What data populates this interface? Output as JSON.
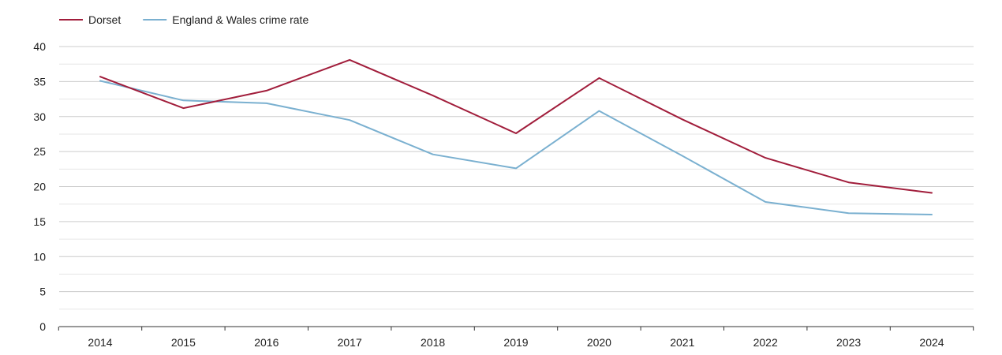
{
  "chart_data": {
    "type": "line",
    "title": "",
    "xlabel": "",
    "ylabel": "",
    "categories": [
      "2014",
      "2015",
      "2016",
      "2017",
      "2018",
      "2019",
      "2020",
      "2021",
      "2022",
      "2023",
      "2024"
    ],
    "series": [
      {
        "name": "Dorset",
        "color": "#a11d3b",
        "values": [
          35.7,
          31.2,
          33.7,
          38.1,
          33.0,
          27.6,
          35.5,
          29.6,
          24.1,
          20.6,
          19.1
        ]
      },
      {
        "name": "England & Wales crime rate",
        "color": "#7ab0d0",
        "values": [
          35.1,
          32.3,
          31.9,
          29.5,
          24.6,
          22.6,
          30.8,
          24.4,
          17.8,
          16.2,
          16.0
        ]
      }
    ],
    "ylim": [
      0,
      40
    ],
    "yticks": [
      0,
      5,
      10,
      15,
      20,
      25,
      30,
      35,
      40
    ],
    "grid": true,
    "legend_position": "top-left"
  }
}
